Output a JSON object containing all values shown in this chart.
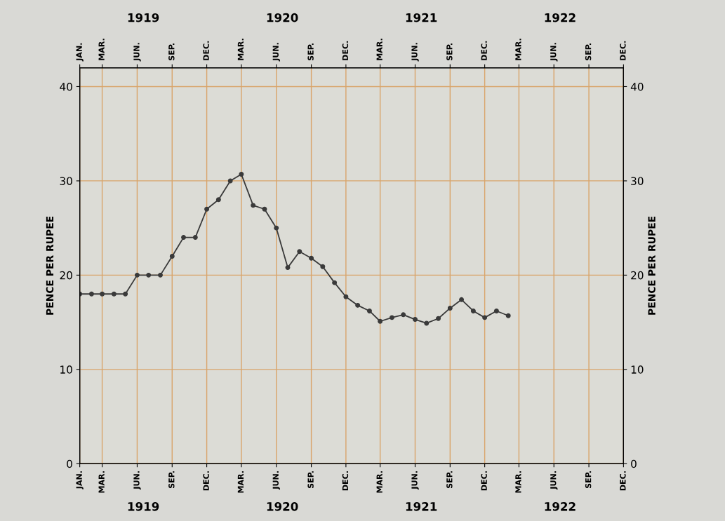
{
  "chart_data": {
    "type": "line",
    "ylabel": "PENCE PER RUPEE",
    "y2label": "PENCE PER RUPEE",
    "annotations": [
      "1919",
      "1920",
      "1921",
      "1922"
    ],
    "x": [
      "1919-01",
      "1919-02",
      "1919-03",
      "1919-04",
      "1919-05",
      "1919-06",
      "1919-07",
      "1919-08",
      "1919-09",
      "1919-10",
      "1919-11",
      "1919-12",
      "1920-01",
      "1920-02",
      "1920-03",
      "1920-04",
      "1920-05",
      "1920-06",
      "1920-07",
      "1920-08",
      "1920-09",
      "1920-10",
      "1920-11",
      "1920-12",
      "1921-01",
      "1921-02",
      "1921-03",
      "1921-04",
      "1921-05",
      "1921-06",
      "1921-07",
      "1921-08",
      "1921-09",
      "1921-10",
      "1921-11",
      "1921-12",
      "1922-01",
      "1922-02"
    ],
    "series": [
      {
        "color": "#3a3a3a",
        "values": [
          18,
          18,
          18,
          18,
          18,
          20,
          20,
          20,
          22,
          24,
          24,
          27,
          28,
          30,
          30.7,
          27.4,
          27.0,
          25.0,
          20.8,
          22.5,
          21.8,
          20.9,
          19.2,
          17.7,
          16.8,
          16.2,
          15.1,
          15.5,
          15.8,
          15.3,
          14.9,
          15.4,
          16.5,
          17.4,
          16.2,
          15.5,
          16.2,
          15.7
        ]
      }
    ],
    "xlim": [
      "1919-01",
      "1922-12"
    ],
    "xticks": [
      {
        "value": "1919-01",
        "label": "JAN."
      },
      {
        "value": "1919-03",
        "label": "MAR."
      },
      {
        "value": "1919-06",
        "label": "JUN."
      },
      {
        "value": "1919-09",
        "label": "SEP."
      },
      {
        "value": "1919-12",
        "label": "DEC."
      },
      {
        "value": "1920-03",
        "label": "MAR."
      },
      {
        "value": "1920-06",
        "label": "JUN."
      },
      {
        "value": "1920-09",
        "label": "SEP."
      },
      {
        "value": "1920-12",
        "label": "DEC."
      },
      {
        "value": "1921-03",
        "label": "MAR."
      },
      {
        "value": "1921-06",
        "label": "JUN."
      },
      {
        "value": "1921-09",
        "label": "SEP."
      },
      {
        "value": "1921-12",
        "label": "DEC."
      },
      {
        "value": "1922-03",
        "label": "MAR."
      },
      {
        "value": "1922-06",
        "label": "JUN."
      },
      {
        "value": "1922-09",
        "label": "SEP."
      },
      {
        "value": "1922-12",
        "label": "DEC."
      }
    ],
    "x2lim": [
      "1919-01",
      "1922-12"
    ],
    "x2ticks": [
      {
        "value": "1919-01",
        "label": "JAN."
      },
      {
        "value": "1919-03",
        "label": "MAR."
      },
      {
        "value": "1919-06",
        "label": "JUN."
      },
      {
        "value": "1919-09",
        "label": "SEP."
      },
      {
        "value": "1919-12",
        "label": "DEC."
      },
      {
        "value": "1920-03",
        "label": "MAR."
      },
      {
        "value": "1920-06",
        "label": "JUN."
      },
      {
        "value": "1920-09",
        "label": "SEP."
      },
      {
        "value": "1920-12",
        "label": "DEC."
      },
      {
        "value": "1921-03",
        "label": "MAR."
      },
      {
        "value": "1921-06",
        "label": "JUN."
      },
      {
        "value": "1921-09",
        "label": "SEP."
      },
      {
        "value": "1921-12",
        "label": "DEC."
      },
      {
        "value": "1922-03",
        "label": "MAR."
      },
      {
        "value": "1922-06",
        "label": "JUN."
      },
      {
        "value": "1922-09",
        "label": "SEP."
      },
      {
        "value": "1922-12",
        "label": "DEC."
      }
    ],
    "ylim": [
      0,
      42
    ],
    "yticks": [
      0,
      10,
      20,
      30,
      40
    ],
    "y2lim": [
      0,
      42
    ],
    "y2ticks": [
      0,
      10,
      20,
      30,
      40
    ],
    "grid": true,
    "marker": "circle",
    "line_style": "solid",
    "legend": false
  }
}
